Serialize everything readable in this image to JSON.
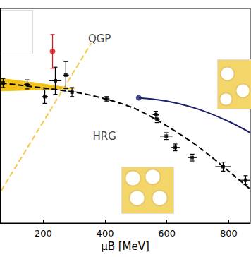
{
  "chart_data": {
    "type": "scatter",
    "x_label": "μB [MeV]",
    "xlim": [
      60,
      870
    ],
    "xticks": [
      200,
      400,
      600,
      800
    ],
    "ylim": [
      96,
      191
    ],
    "tick_labels": "x",
    "annotations": [
      {
        "text": "QGP",
        "x": 382,
        "y": 177.5
      },
      {
        "text": "HRG",
        "x": 398,
        "y": 134.5
      }
    ],
    "series": [
      {
        "type": "band",
        "color": "#f2c21b",
        "x": [
          64,
          180,
          302
        ],
        "lower": [
          154.5,
          155,
          155.5
        ],
        "upper": [
          160,
          158,
          155.5
        ]
      },
      {
        "type": "line",
        "color": "#f5c84a",
        "line_style": "dashed",
        "x": [
          64,
          355
        ],
        "values": [
          110.4,
          175.6
        ]
      },
      {
        "type": "line",
        "color": "#000000",
        "line_style": "dashed",
        "x": [
          64,
          300,
          400,
          500,
          600,
          700,
          800,
          870
        ],
        "values": [
          158,
          154,
          151,
          146.5,
          139,
          130,
          119,
          111
        ]
      },
      {
        "type": "line",
        "color": "#1a1f6e",
        "line_style": "solid",
        "x": [
          509,
          600,
          700,
          800,
          870
        ],
        "values": [
          151.5,
          150,
          146.5,
          141,
          136
        ]
      },
      {
        "type": "scatter",
        "color": "#000000",
        "marker": "square",
        "x": [
          70,
          148,
          205,
          239,
          273,
          293,
          405,
          564,
          568,
          598,
          627,
          682,
          782,
          855
        ],
        "values": [
          158,
          157.4,
          152,
          159,
          161.5,
          154,
          151,
          144,
          142,
          134.5,
          129.5,
          125,
          121,
          115
        ],
        "xerr": [
          10,
          10,
          10,
          20,
          10,
          20,
          10,
          10,
          10,
          20,
          15,
          15,
          25,
          20
        ],
        "yerr": [
          2,
          2,
          3,
          6,
          6,
          2,
          1,
          1.5,
          1.5,
          1.5,
          1.5,
          1.5,
          2,
          2
        ]
      },
      {
        "type": "scatter",
        "color": "#1a1f6e",
        "marker": "circle",
        "x": [
          509
        ],
        "values": [
          151.5
        ]
      },
      {
        "type": "scatter",
        "color": "#d7191c",
        "marker": "circle",
        "x": [
          230
        ],
        "values": [
          172
        ],
        "yerr": [
          7.5
        ]
      }
    ]
  }
}
